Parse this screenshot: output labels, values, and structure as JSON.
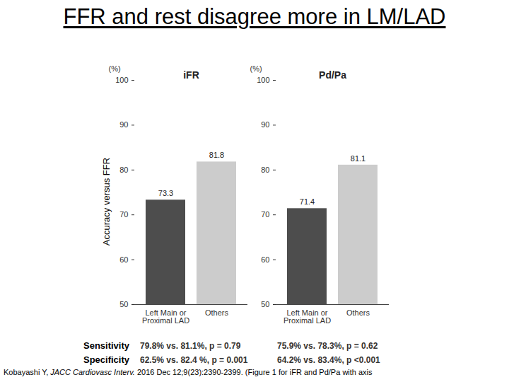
{
  "slide_title": "FFR and rest disagree more in LM/LAD",
  "y_axis_title": "Accuracy versus FFR",
  "chart_data": [
    {
      "type": "bar",
      "title": "iFR",
      "ylabel": "(%)",
      "categories": [
        "Left Main or\nProximal LAD",
        "Others"
      ],
      "values": [
        73.3,
        81.8
      ],
      "colors": [
        "#4d4d4d",
        "#cccccc"
      ],
      "ylim": [
        50,
        100
      ],
      "yticks": [
        50,
        60,
        70,
        80,
        90,
        100
      ],
      "grid": false,
      "data_labels": true
    },
    {
      "type": "bar",
      "title": "Pd/Pa",
      "ylabel": "(%)",
      "categories": [
        "Left Main or\nProximal LAD",
        "Others"
      ],
      "values": [
        71.4,
        81.1
      ],
      "colors": [
        "#4d4d4d",
        "#cccccc"
      ],
      "ylim": [
        50,
        100
      ],
      "yticks": [
        50,
        60,
        70,
        80,
        90,
        100
      ],
      "grid": false,
      "data_labels": true
    }
  ],
  "stats": {
    "rows": [
      {
        "label": "Sensitivity",
        "values": [
          "79.8% vs. 81.1%, p = 0.79",
          "75.9% vs. 78.3%, p = 0.62"
        ]
      },
      {
        "label": "Specificity",
        "values": [
          "62.5% vs. 82.4 %, p = 0.001",
          "64.2% vs. 83.4%, p <0.001"
        ]
      }
    ]
  },
  "citation": {
    "author": "Kobayashi Y, ",
    "journal": "JACC Cardiovasc Interv.",
    "text": " 2016 Dec 12;9(23):2390-2399. (Figure 1 for iFR and Pd/Pa with axis"
  }
}
